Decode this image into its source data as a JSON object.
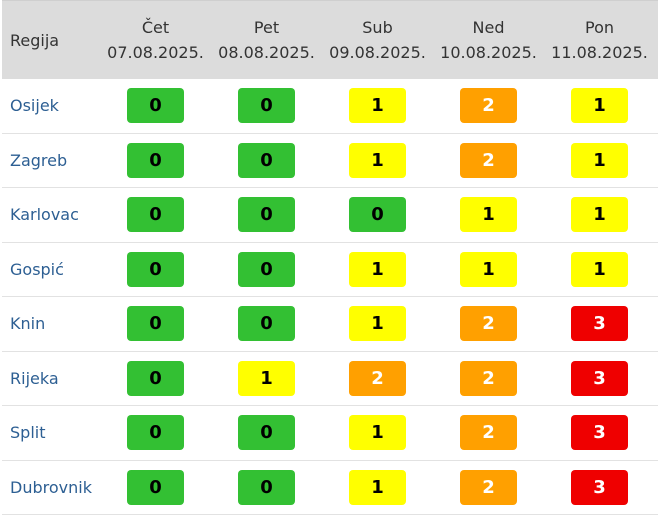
{
  "header": {
    "region_label": "Regija",
    "days": [
      {
        "day": "Čet",
        "date": "07.08.2025."
      },
      {
        "day": "Pet",
        "date": "08.08.2025."
      },
      {
        "day": "Sub",
        "date": "09.08.2025."
      },
      {
        "day": "Ned",
        "date": "10.08.2025."
      },
      {
        "day": "Pon",
        "date": "11.08.2025."
      }
    ]
  },
  "colors": {
    "level_0": "#33c033",
    "level_1": "#ffff00",
    "level_2": "#ffa000",
    "level_3": "#ef0000"
  },
  "rows": [
    {
      "region": "Osijek",
      "levels": [
        "0",
        "0",
        "1",
        "2",
        "1"
      ]
    },
    {
      "region": "Zagreb",
      "levels": [
        "0",
        "0",
        "1",
        "2",
        "1"
      ]
    },
    {
      "region": "Karlovac",
      "levels": [
        "0",
        "0",
        "0",
        "1",
        "1"
      ]
    },
    {
      "region": "Gospić",
      "levels": [
        "0",
        "0",
        "1",
        "1",
        "1"
      ]
    },
    {
      "region": "Knin",
      "levels": [
        "0",
        "0",
        "1",
        "2",
        "3"
      ]
    },
    {
      "region": "Rijeka",
      "levels": [
        "0",
        "1",
        "2",
        "2",
        "3"
      ]
    },
    {
      "region": "Split",
      "levels": [
        "0",
        "0",
        "1",
        "2",
        "3"
      ]
    },
    {
      "region": "Dubrovnik",
      "levels": [
        "0",
        "0",
        "1",
        "2",
        "3"
      ]
    }
  ]
}
